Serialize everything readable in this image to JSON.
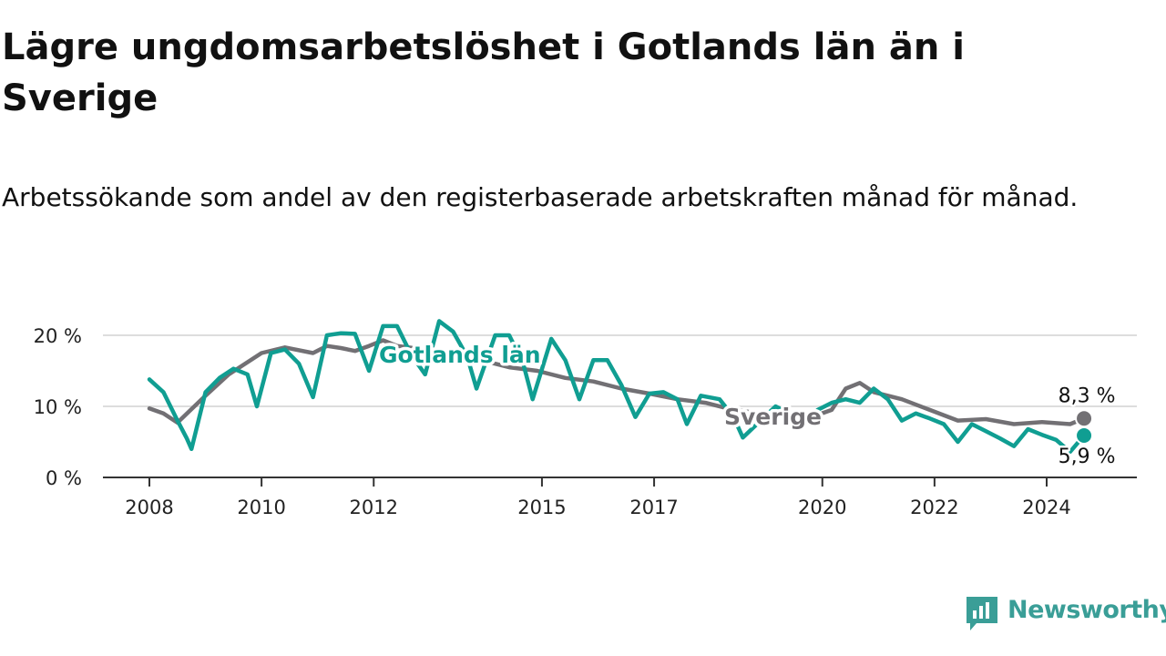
{
  "title": "Lägre ungdomsarbetslöshet i Gotlands län än i Sverige",
  "subtitle": "Arbetssökande som andel av den registerbaserade arbetskraften månad för månad.",
  "brand": {
    "name": "Newsworthy",
    "color": "#3a9e97",
    "icon": "newsworthy-logo-icon"
  },
  "chart_data": {
    "type": "line",
    "title": "Lägre ungdomsarbetslöshet i Gotlands län än i Sverige",
    "subtitle": "Arbetssökande som andel av den registerbaserade arbetskraften månad för månad.",
    "xlabel": "",
    "ylabel": "",
    "x_ticks": [
      "2008",
      "2010",
      "2012",
      "2015",
      "2017",
      "2020",
      "2022",
      "2024"
    ],
    "y_ticks": [
      0,
      10,
      20
    ],
    "y_tick_labels": [
      "0 %",
      "10 %",
      "20 %"
    ],
    "ylim": [
      0,
      22.5
    ],
    "xlim": [
      "2008-01",
      "2025-12"
    ],
    "grid": "horizontal",
    "legend": "direct labels on lines",
    "series": [
      {
        "name": "Gotlands län",
        "color": "#109e92",
        "points": [
          [
            "2008-01",
            13.8
          ],
          [
            "2008-04",
            12.0
          ],
          [
            "2008-07",
            8.0
          ],
          [
            "2008-09",
            5.5
          ],
          [
            "2008-10",
            4.0
          ],
          [
            "2009-01",
            12.0
          ],
          [
            "2009-04",
            14.0
          ],
          [
            "2009-07",
            15.3
          ],
          [
            "2009-10",
            14.5
          ],
          [
            "2009-12",
            10.0
          ],
          [
            "2010-03",
            17.5
          ],
          [
            "2010-06",
            18.0
          ],
          [
            "2010-09",
            16.0
          ],
          [
            "2010-12",
            11.3
          ],
          [
            "2011-03",
            20.0
          ],
          [
            "2011-06",
            20.3
          ],
          [
            "2011-09",
            20.2
          ],
          [
            "2011-12",
            15.0
          ],
          [
            "2012-03",
            21.3
          ],
          [
            "2012-06",
            21.3
          ],
          [
            "2012-09",
            17.3
          ],
          [
            "2012-12",
            14.5
          ],
          [
            "2013-03",
            22.0
          ],
          [
            "2013-06",
            20.5
          ],
          [
            "2013-09",
            17.0
          ],
          [
            "2013-11",
            12.5
          ],
          [
            "2014-03",
            20.0
          ],
          [
            "2014-06",
            20.0
          ],
          [
            "2014-09",
            16.0
          ],
          [
            "2014-11",
            11.0
          ],
          [
            "2015-03",
            19.5
          ],
          [
            "2015-06",
            16.5
          ],
          [
            "2015-09",
            11.0
          ],
          [
            "2015-12",
            16.5
          ],
          [
            "2016-03",
            16.5
          ],
          [
            "2016-06",
            13.0
          ],
          [
            "2016-09",
            8.5
          ],
          [
            "2016-12",
            11.8
          ],
          [
            "2017-03",
            12.0
          ],
          [
            "2017-06",
            11.0
          ],
          [
            "2017-08",
            7.5
          ],
          [
            "2017-11",
            11.5
          ],
          [
            "2018-03",
            11.0
          ],
          [
            "2018-06",
            8.5
          ],
          [
            "2018-08",
            5.6
          ],
          [
            "2019-03",
            10.0
          ],
          [
            "2019-09",
            8.0
          ],
          [
            "2019-12",
            9.5
          ],
          [
            "2020-03",
            10.5
          ],
          [
            "2020-06",
            11.0
          ],
          [
            "2020-09",
            10.5
          ],
          [
            "2020-12",
            12.5
          ],
          [
            "2021-03",
            11.0
          ],
          [
            "2021-06",
            8.0
          ],
          [
            "2021-09",
            9.0
          ],
          [
            "2021-12",
            8.3
          ],
          [
            "2022-03",
            7.5
          ],
          [
            "2022-06",
            5.0
          ],
          [
            "2022-09",
            7.5
          ],
          [
            "2022-12",
            6.5
          ],
          [
            "2023-03",
            5.5
          ],
          [
            "2023-06",
            4.4
          ],
          [
            "2023-09",
            6.8
          ],
          [
            "2023-12",
            6.0
          ],
          [
            "2024-03",
            5.3
          ],
          [
            "2024-06",
            3.6
          ],
          [
            "2024-09",
            5.9
          ]
        ],
        "end_label": "5,9 %"
      },
      {
        "name": "Sverige",
        "color": "#727074",
        "points": [
          [
            "2008-01",
            9.7
          ],
          [
            "2008-04",
            9.0
          ],
          [
            "2008-07",
            7.7
          ],
          [
            "2009-01",
            11.5
          ],
          [
            "2009-06",
            14.5
          ],
          [
            "2010-01",
            17.5
          ],
          [
            "2010-06",
            18.3
          ],
          [
            "2010-12",
            17.5
          ],
          [
            "2011-03",
            18.5
          ],
          [
            "2011-06",
            18.2
          ],
          [
            "2011-09",
            17.8
          ],
          [
            "2011-12",
            18.5
          ],
          [
            "2012-03",
            19.3
          ],
          [
            "2012-06",
            18.5
          ],
          [
            "2012-12",
            18.0
          ],
          [
            "2013-06",
            17.5
          ],
          [
            "2013-12",
            16.5
          ],
          [
            "2014-06",
            15.5
          ],
          [
            "2014-12",
            15.0
          ],
          [
            "2015-06",
            14.0
          ],
          [
            "2015-12",
            13.5
          ],
          [
            "2016-06",
            12.5
          ],
          [
            "2016-12",
            11.8
          ],
          [
            "2017-06",
            11.0
          ],
          [
            "2017-12",
            10.5
          ],
          [
            "2018-06",
            9.5
          ],
          [
            "2018-12",
            9.0
          ],
          [
            "2019-06",
            8.5
          ],
          [
            "2019-12",
            8.8
          ],
          [
            "2020-03",
            9.5
          ],
          [
            "2020-06",
            12.5
          ],
          [
            "2020-09",
            13.3
          ],
          [
            "2020-12",
            12.0
          ],
          [
            "2021-06",
            11.0
          ],
          [
            "2021-12",
            9.5
          ],
          [
            "2022-06",
            8.0
          ],
          [
            "2022-12",
            8.2
          ],
          [
            "2023-06",
            7.5
          ],
          [
            "2023-12",
            7.8
          ],
          [
            "2024-06",
            7.5
          ],
          [
            "2024-09",
            8.3
          ]
        ],
        "end_label": "8,3 %"
      }
    ]
  }
}
